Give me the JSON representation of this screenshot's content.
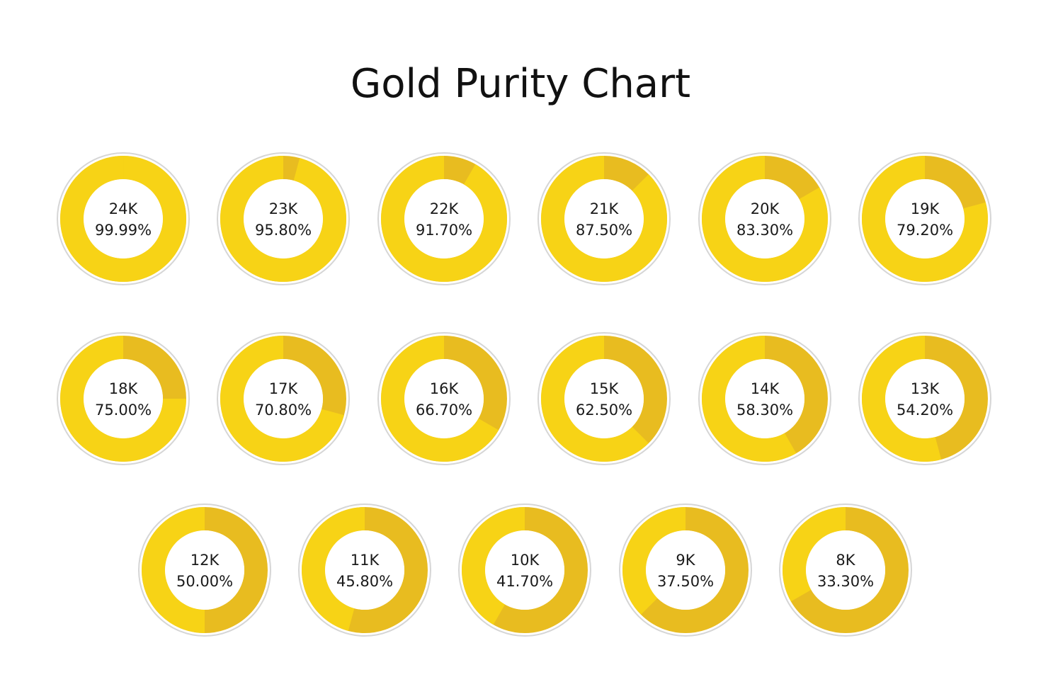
{
  "title": "Gold Purity Chart",
  "colors": {
    "gold_fill": "#F7D316",
    "gold_remainder": "#E8BC20",
    "inner": "#FFFFFF",
    "outline": "#D6D6D6",
    "text": "#1A1A1A"
  },
  "chart_data": {
    "type": "pie",
    "title": "Gold Purity Chart",
    "unit": "%",
    "items": [
      {
        "karat": "24K",
        "label": "99.99%",
        "value": 99.99
      },
      {
        "karat": "23K",
        "label": "95.80%",
        "value": 95.8
      },
      {
        "karat": "22K",
        "label": "91.70%",
        "value": 91.7
      },
      {
        "karat": "21K",
        "label": "87.50%",
        "value": 87.5
      },
      {
        "karat": "20K",
        "label": "83.30%",
        "value": 83.3
      },
      {
        "karat": "19K",
        "label": "79.20%",
        "value": 79.2
      },
      {
        "karat": "18K",
        "label": "75.00%",
        "value": 75.0
      },
      {
        "karat": "17K",
        "label": "70.80%",
        "value": 70.8
      },
      {
        "karat": "16K",
        "label": "66.70%",
        "value": 66.7
      },
      {
        "karat": "15K",
        "label": "62.50%",
        "value": 62.5
      },
      {
        "karat": "14K",
        "label": "58.30%",
        "value": 58.3
      },
      {
        "karat": "13K",
        "label": "54.20%",
        "value": 54.2
      },
      {
        "karat": "12K",
        "label": "50.00%",
        "value": 50.0
      },
      {
        "karat": "11K",
        "label": "45.80%",
        "value": 45.8
      },
      {
        "karat": "10K",
        "label": "41.70%",
        "value": 41.7
      },
      {
        "karat": "9K",
        "label": "37.50%",
        "value": 37.5
      },
      {
        "karat": "8K",
        "label": "33.30%",
        "value": 33.3
      }
    ]
  }
}
